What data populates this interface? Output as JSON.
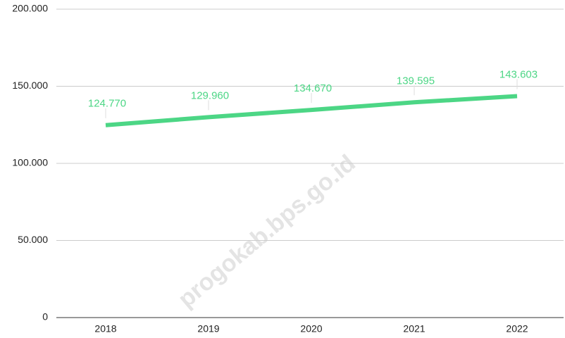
{
  "chart_data": {
    "type": "line",
    "categories": [
      "2018",
      "2019",
      "2020",
      "2021",
      "2022"
    ],
    "series": [
      {
        "name": null,
        "color": "#4cd685",
        "values": [
          124770,
          129960,
          134670,
          139595,
          143603
        ],
        "value_labels": [
          "124.770",
          "129.960",
          "134.670",
          "139.595",
          "143.603"
        ]
      }
    ],
    "ylim": [
      0,
      200000
    ],
    "yticks": [
      0,
      {
        "value": 50000,
        "label": "50.000"
      },
      {
        "value": 100000,
        "label": "100.000"
      },
      {
        "value": 150000,
        "label": "150.000"
      },
      {
        "value": 200000,
        "label": "200.000"
      }
    ],
    "grid": true,
    "watermark": "progokab.bps.go.id"
  }
}
